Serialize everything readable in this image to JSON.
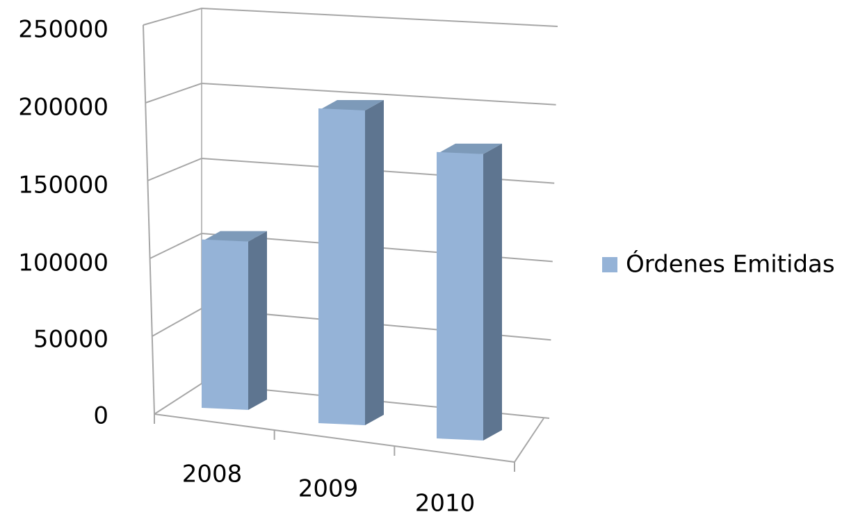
{
  "chart_data": {
    "type": "bar",
    "subtype": "3d-column",
    "categories": [
      "2008",
      "2009",
      "2010"
    ],
    "series": [
      {
        "name": "Órdenes Emitidas",
        "values": [
          107000,
          200000,
          182000
        ],
        "color": "#95b3d7"
      }
    ],
    "title": "",
    "xlabel": "",
    "ylabel": "",
    "ylim": [
      0,
      250000
    ],
    "yticks": [
      "0",
      "50000",
      "100000",
      "150000",
      "200000",
      "250000"
    ],
    "grid": true,
    "legend": "right"
  },
  "colors": {
    "bar_front": "#95b3d7",
    "bar_side": "#5e7590",
    "bar_top": "#7d9ab9",
    "grid": "#a6a6a6",
    "text": "#000000"
  }
}
